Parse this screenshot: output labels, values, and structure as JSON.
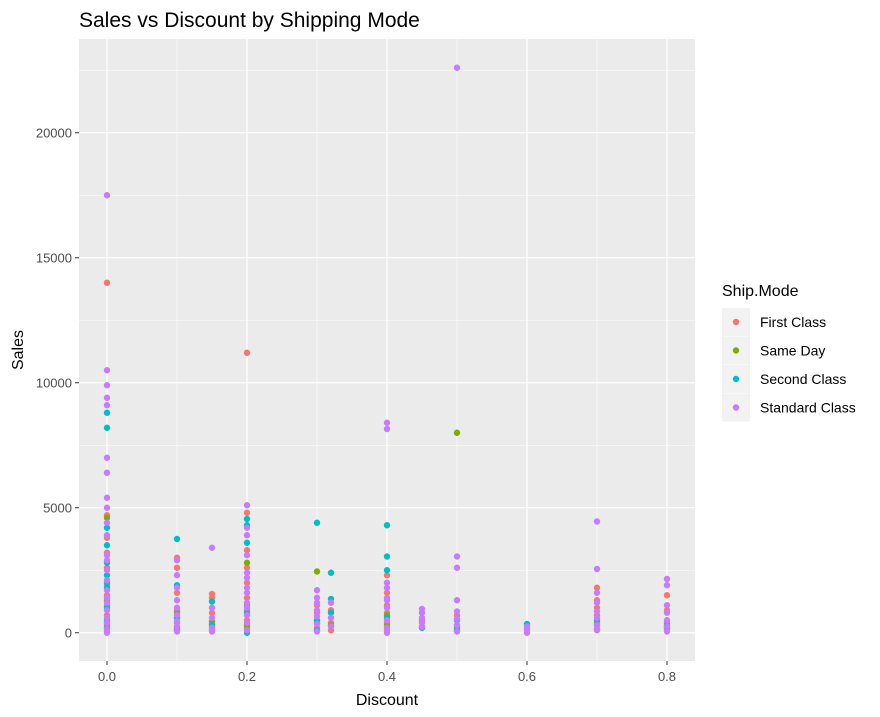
{
  "chart_data": {
    "type": "scatter",
    "title": "Sales vs Discount by Shipping Mode",
    "xlabel": "Discount",
    "ylabel": "Sales",
    "xlim": [
      -0.04,
      0.84
    ],
    "ylim": [
      -1130,
      23750
    ],
    "x_ticks": [
      {
        "value": 0.0,
        "label": "0.0"
      },
      {
        "value": 0.2,
        "label": "0.2"
      },
      {
        "value": 0.4,
        "label": "0.4"
      },
      {
        "value": 0.6,
        "label": "0.6"
      },
      {
        "value": 0.8,
        "label": "0.8"
      }
    ],
    "y_ticks": [
      {
        "value": 0,
        "label": "0"
      },
      {
        "value": 5000,
        "label": "5000"
      },
      {
        "value": 10000,
        "label": "10000"
      },
      {
        "value": 15000,
        "label": "15000"
      },
      {
        "value": 20000,
        "label": "20000"
      }
    ],
    "grid": true,
    "legend": {
      "title": "Ship.Mode",
      "position": "right"
    },
    "series": [
      {
        "name": "First Class",
        "color": "#F8766D",
        "points": [
          [
            0.0,
            14000
          ],
          [
            0.0,
            4700
          ],
          [
            0.0,
            3800
          ],
          [
            0.0,
            3200
          ],
          [
            0.0,
            2600
          ],
          [
            0.0,
            1900
          ],
          [
            0.0,
            1500
          ],
          [
            0.0,
            1100
          ],
          [
            0.0,
            700
          ],
          [
            0.0,
            300
          ],
          [
            0.0,
            50
          ],
          [
            0.1,
            3000
          ],
          [
            0.1,
            2600
          ],
          [
            0.1,
            1600
          ],
          [
            0.1,
            900
          ],
          [
            0.1,
            400
          ],
          [
            0.1,
            100
          ],
          [
            0.15,
            1550
          ],
          [
            0.15,
            1400
          ],
          [
            0.15,
            800
          ],
          [
            0.15,
            350
          ],
          [
            0.15,
            120
          ],
          [
            0.2,
            11200
          ],
          [
            0.2,
            4800
          ],
          [
            0.2,
            3300
          ],
          [
            0.2,
            2600
          ],
          [
            0.2,
            2000
          ],
          [
            0.2,
            1400
          ],
          [
            0.2,
            900
          ],
          [
            0.2,
            500
          ],
          [
            0.2,
            200
          ],
          [
            0.3,
            1100
          ],
          [
            0.3,
            800
          ],
          [
            0.3,
            500
          ],
          [
            0.3,
            200
          ],
          [
            0.32,
            900
          ],
          [
            0.32,
            400
          ],
          [
            0.32,
            100
          ],
          [
            0.4,
            2300
          ],
          [
            0.4,
            1600
          ],
          [
            0.4,
            1100
          ],
          [
            0.4,
            800
          ],
          [
            0.4,
            400
          ],
          [
            0.4,
            100
          ],
          [
            0.45,
            500
          ],
          [
            0.45,
            200
          ],
          [
            0.5,
            700
          ],
          [
            0.5,
            300
          ],
          [
            0.6,
            150
          ],
          [
            0.7,
            1800
          ],
          [
            0.7,
            1300
          ],
          [
            0.7,
            1000
          ],
          [
            0.7,
            700
          ],
          [
            0.7,
            400
          ],
          [
            0.7,
            150
          ],
          [
            0.8,
            1500
          ],
          [
            0.8,
            900
          ],
          [
            0.8,
            400
          ],
          [
            0.8,
            150
          ]
        ]
      },
      {
        "name": "Same Day",
        "color": "#7CAE00",
        "points": [
          [
            0.0,
            4600
          ],
          [
            0.0,
            1300
          ],
          [
            0.0,
            400
          ],
          [
            0.1,
            800
          ],
          [
            0.1,
            200
          ],
          [
            0.15,
            450
          ],
          [
            0.2,
            2800
          ],
          [
            0.2,
            1100
          ],
          [
            0.2,
            300
          ],
          [
            0.3,
            2450
          ],
          [
            0.3,
            400
          ],
          [
            0.32,
            300
          ],
          [
            0.4,
            700
          ],
          [
            0.4,
            300
          ],
          [
            0.5,
            8000
          ],
          [
            0.5,
            200
          ],
          [
            0.7,
            300
          ],
          [
            0.8,
            200
          ]
        ]
      },
      {
        "name": "Second Class",
        "color": "#00BFC4",
        "points": [
          [
            0.0,
            8800
          ],
          [
            0.0,
            8200
          ],
          [
            0.0,
            4200
          ],
          [
            0.0,
            3500
          ],
          [
            0.0,
            2800
          ],
          [
            0.0,
            2300
          ],
          [
            0.0,
            2000
          ],
          [
            0.0,
            1800
          ],
          [
            0.0,
            1000
          ],
          [
            0.0,
            500
          ],
          [
            0.0,
            200
          ],
          [
            0.1,
            3750
          ],
          [
            0.1,
            1900
          ],
          [
            0.1,
            600
          ],
          [
            0.1,
            100
          ],
          [
            0.15,
            1250
          ],
          [
            0.15,
            300
          ],
          [
            0.2,
            4550
          ],
          [
            0.2,
            4300
          ],
          [
            0.2,
            3600
          ],
          [
            0.2,
            800
          ],
          [
            0.2,
            0
          ],
          [
            0.3,
            4400
          ],
          [
            0.3,
            500
          ],
          [
            0.3,
            100
          ],
          [
            0.32,
            2400
          ],
          [
            0.32,
            1350
          ],
          [
            0.32,
            800
          ],
          [
            0.4,
            4300
          ],
          [
            0.4,
            3050
          ],
          [
            0.4,
            2500
          ],
          [
            0.4,
            600
          ],
          [
            0.45,
            200
          ],
          [
            0.5,
            500
          ],
          [
            0.5,
            100
          ],
          [
            0.6,
            350
          ],
          [
            0.7,
            500
          ],
          [
            0.8,
            300
          ]
        ]
      },
      {
        "name": "Standard Class",
        "color": "#C77CFF",
        "points": [
          [
            0.0,
            17500
          ],
          [
            0.0,
            10500
          ],
          [
            0.0,
            9900
          ],
          [
            0.0,
            9400
          ],
          [
            0.0,
            9100
          ],
          [
            0.0,
            7000
          ],
          [
            0.0,
            6400
          ],
          [
            0.0,
            5400
          ],
          [
            0.0,
            5000
          ],
          [
            0.0,
            4400
          ],
          [
            0.0,
            3900
          ],
          [
            0.0,
            3100
          ],
          [
            0.0,
            2900
          ],
          [
            0.0,
            2500
          ],
          [
            0.0,
            2100
          ],
          [
            0.0,
            1700
          ],
          [
            0.0,
            1400
          ],
          [
            0.0,
            1200
          ],
          [
            0.0,
            900
          ],
          [
            0.0,
            600
          ],
          [
            0.0,
            400
          ],
          [
            0.0,
            150
          ],
          [
            0.0,
            0
          ],
          [
            0.1,
            2900
          ],
          [
            0.1,
            2300
          ],
          [
            0.1,
            1800
          ],
          [
            0.1,
            1300
          ],
          [
            0.1,
            1000
          ],
          [
            0.1,
            700
          ],
          [
            0.1,
            450
          ],
          [
            0.1,
            250
          ],
          [
            0.1,
            50
          ],
          [
            0.15,
            3400
          ],
          [
            0.15,
            1000
          ],
          [
            0.15,
            600
          ],
          [
            0.15,
            200
          ],
          [
            0.15,
            50
          ],
          [
            0.2,
            5100
          ],
          [
            0.2,
            4200
          ],
          [
            0.2,
            3900
          ],
          [
            0.2,
            3100
          ],
          [
            0.2,
            2400
          ],
          [
            0.2,
            2200
          ],
          [
            0.2,
            1800
          ],
          [
            0.2,
            1600
          ],
          [
            0.2,
            1200
          ],
          [
            0.2,
            1000
          ],
          [
            0.2,
            700
          ],
          [
            0.2,
            400
          ],
          [
            0.2,
            100
          ],
          [
            0.3,
            1700
          ],
          [
            0.3,
            1400
          ],
          [
            0.3,
            1200
          ],
          [
            0.3,
            900
          ],
          [
            0.3,
            650
          ],
          [
            0.3,
            350
          ],
          [
            0.3,
            50
          ],
          [
            0.32,
            1200
          ],
          [
            0.32,
            600
          ],
          [
            0.32,
            250
          ],
          [
            0.4,
            8400
          ],
          [
            0.4,
            8150
          ],
          [
            0.4,
            2000
          ],
          [
            0.4,
            1800
          ],
          [
            0.4,
            1400
          ],
          [
            0.4,
            1300
          ],
          [
            0.4,
            1000
          ],
          [
            0.4,
            500
          ],
          [
            0.4,
            200
          ],
          [
            0.4,
            0
          ],
          [
            0.45,
            950
          ],
          [
            0.45,
            800
          ],
          [
            0.45,
            600
          ],
          [
            0.45,
            400
          ],
          [
            0.45,
            250
          ],
          [
            0.5,
            22600
          ],
          [
            0.5,
            3050
          ],
          [
            0.5,
            2600
          ],
          [
            0.5,
            1300
          ],
          [
            0.5,
            850
          ],
          [
            0.5,
            550
          ],
          [
            0.5,
            300
          ],
          [
            0.5,
            50
          ],
          [
            0.6,
            250
          ],
          [
            0.6,
            100
          ],
          [
            0.6,
            0
          ],
          [
            0.7,
            4450
          ],
          [
            0.7,
            2550
          ],
          [
            0.7,
            1600
          ],
          [
            0.7,
            1200
          ],
          [
            0.7,
            850
          ],
          [
            0.7,
            600
          ],
          [
            0.7,
            300
          ],
          [
            0.7,
            100
          ],
          [
            0.8,
            2150
          ],
          [
            0.8,
            1900
          ],
          [
            0.8,
            1100
          ],
          [
            0.8,
            800
          ],
          [
            0.8,
            500
          ],
          [
            0.8,
            250
          ],
          [
            0.8,
            50
          ]
        ]
      }
    ]
  }
}
